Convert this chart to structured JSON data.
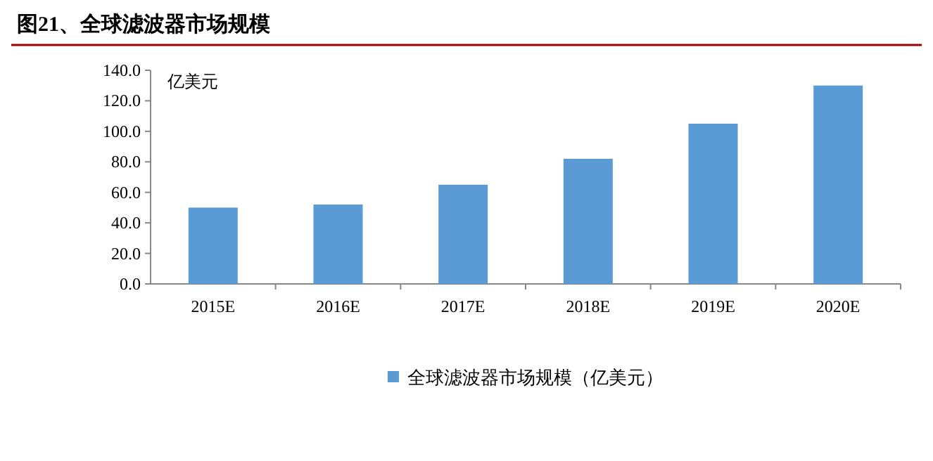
{
  "chart_data": {
    "type": "bar",
    "title": "图21、全球滤波器市场规模",
    "ylabel": "亿美元",
    "categories": [
      "2015E",
      "2016E",
      "2017E",
      "2018E",
      "2019E",
      "2020E"
    ],
    "series": [
      {
        "name": "全球滤波器市场规模（亿美元）",
        "color": "#5b9bd5",
        "values": [
          50,
          52,
          65,
          82,
          105,
          130
        ]
      }
    ],
    "ylim": [
      0,
      140
    ],
    "yticks": [
      {
        "value": 0,
        "label": "0.0"
      },
      {
        "value": 20,
        "label": "20.0"
      },
      {
        "value": 40,
        "label": "40.0"
      },
      {
        "value": 60,
        "label": "60.0"
      },
      {
        "value": 80,
        "label": "80.0"
      },
      {
        "value": 100,
        "label": "100.0"
      },
      {
        "value": 120,
        "label": "120.0"
      },
      {
        "value": 140,
        "label": "140.0"
      }
    ],
    "legend": "bottom",
    "grid": false
  }
}
